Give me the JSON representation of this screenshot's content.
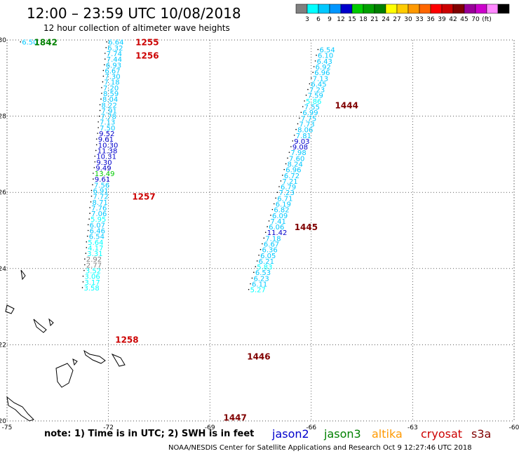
{
  "header": {
    "title": "12:00 – 23:59 UTC 10/08/2018",
    "subtitle": "12 hour collection of altimeter wave heights"
  },
  "colorbar": {
    "swatches": [
      "#808080",
      "#00ffff",
      "#00c8ff",
      "#0096ff",
      "#0000cc",
      "#00cc00",
      "#00a000",
      "#008000",
      "#ffff00",
      "#ffcc00",
      "#ff9900",
      "#ff6600",
      "#ff0000",
      "#cc0000",
      "#800000",
      "#990099",
      "#cc00cc",
      "#ff88ff",
      "#000000"
    ],
    "labels": [
      "3",
      "6",
      "9",
      "12",
      "15",
      "18",
      "21",
      "24",
      "27",
      "30",
      "33",
      "36",
      "39",
      "42",
      "45",
      "70",
      "(ft)"
    ]
  },
  "note": "note:  1) Time is in UTC;  2) SWH is in feet",
  "satellites": [
    {
      "name": "jason2",
      "color": "#0000cc"
    },
    {
      "name": "jason3",
      "color": "#008000"
    },
    {
      "name": "altika",
      "color": "#ff9900"
    },
    {
      "name": "cryosat",
      "color": "#cc0000"
    },
    {
      "name": "s3a",
      "color": "#800000"
    }
  ],
  "footer": "NOAA/NESDIS Center for Satellite Applications and Research    Oct  9 12:27:46 UTC 2018",
  "chart_data": {
    "type": "scatter",
    "title": "12:00 – 23:59 UTC 10/08/2018",
    "xlim": [
      -75,
      -60
    ],
    "ylim": [
      20,
      30
    ],
    "x_ticks": [
      "-75",
      "-72",
      "-69",
      "-66",
      "-63",
      "-60"
    ],
    "y_ticks": [
      "20",
      "22",
      "24",
      "26",
      "28",
      "30"
    ],
    "grid": true,
    "tracks": [
      {
        "name": "cryosat",
        "color": "#cc0000",
        "times": [
          {
            "label": "1255",
            "lat": 29.95,
            "lon": -71.2
          },
          {
            "label": "1256",
            "lat": 29.6,
            "lon": -71.2
          },
          {
            "label": "1257",
            "lat": 25.9,
            "lon": -71.3
          },
          {
            "label": "1258",
            "lat": 22.15,
            "lon": -71.8
          }
        ],
        "points": [
          {
            "lat": 29.95,
            "lon": -72.05,
            "swh": "6.64",
            "color": "#00c8ff"
          },
          {
            "lat": 29.8,
            "lon": -72.07,
            "swh": "6.32",
            "color": "#00c8ff"
          },
          {
            "lat": 29.65,
            "lon": -72.1,
            "swh": "7.74",
            "color": "#00c8ff"
          },
          {
            "lat": 29.5,
            "lon": -72.1,
            "swh": "7.44",
            "color": "#00c8ff"
          },
          {
            "lat": 29.35,
            "lon": -72.12,
            "swh": "6.93",
            "color": "#00c8ff"
          },
          {
            "lat": 29.2,
            "lon": -72.15,
            "swh": "6.67",
            "color": "#00c8ff"
          },
          {
            "lat": 29.05,
            "lon": -72.15,
            "swh": "7.30",
            "color": "#00c8ff"
          },
          {
            "lat": 28.9,
            "lon": -72.17,
            "swh": "7.18",
            "color": "#00c8ff"
          },
          {
            "lat": 28.75,
            "lon": -72.2,
            "swh": "7.20",
            "color": "#00c8ff"
          },
          {
            "lat": 28.6,
            "lon": -72.2,
            "swh": "8.59",
            "color": "#00c8ff"
          },
          {
            "lat": 28.45,
            "lon": -72.22,
            "swh": "8.04",
            "color": "#00c8ff"
          },
          {
            "lat": 28.3,
            "lon": -72.25,
            "swh": "8.22",
            "color": "#00c8ff"
          },
          {
            "lat": 28.15,
            "lon": -72.25,
            "swh": "7.91",
            "color": "#00c8ff"
          },
          {
            "lat": 28.0,
            "lon": -72.27,
            "swh": "7.78",
            "color": "#00c8ff"
          },
          {
            "lat": 27.85,
            "lon": -72.3,
            "swh": "7.13",
            "color": "#00c8ff"
          },
          {
            "lat": 27.7,
            "lon": -72.3,
            "swh": "7.50",
            "color": "#00c8ff"
          },
          {
            "lat": 27.55,
            "lon": -72.32,
            "swh": "9.52",
            "color": "#0000cc"
          },
          {
            "lat": 27.4,
            "lon": -72.35,
            "swh": "9.61",
            "color": "#0000cc"
          },
          {
            "lat": 27.25,
            "lon": -72.35,
            "swh": "10.30",
            "color": "#0000cc"
          },
          {
            "lat": 27.1,
            "lon": -72.37,
            "swh": "11.38",
            "color": "#0000cc"
          },
          {
            "lat": 26.95,
            "lon": -72.4,
            "swh": "10.31",
            "color": "#0000cc"
          },
          {
            "lat": 26.8,
            "lon": -72.4,
            "swh": "9.30",
            "color": "#0000cc"
          },
          {
            "lat": 26.65,
            "lon": -72.42,
            "swh": "9.49",
            "color": "#0000cc"
          },
          {
            "lat": 26.5,
            "lon": -72.45,
            "swh": "13.49",
            "color": "#00cc00"
          },
          {
            "lat": 26.35,
            "lon": -72.45,
            "swh": "9.61",
            "color": "#0000cc"
          },
          {
            "lat": 26.2,
            "lon": -72.47,
            "swh": "7.56",
            "color": "#00c8ff"
          },
          {
            "lat": 26.05,
            "lon": -72.5,
            "swh": "6.91",
            "color": "#00c8ff"
          },
          {
            "lat": 25.9,
            "lon": -72.5,
            "swh": "7.72",
            "color": "#00c8ff"
          },
          {
            "lat": 25.75,
            "lon": -72.52,
            "swh": "8.71",
            "color": "#00c8ff"
          },
          {
            "lat": 25.6,
            "lon": -72.55,
            "swh": "7.76",
            "color": "#00c8ff"
          },
          {
            "lat": 25.45,
            "lon": -72.55,
            "swh": "7.06",
            "color": "#00c8ff"
          },
          {
            "lat": 25.3,
            "lon": -72.57,
            "swh": "5.95",
            "color": "#00ffff"
          },
          {
            "lat": 25.15,
            "lon": -72.6,
            "swh": "6.07",
            "color": "#00c8ff"
          },
          {
            "lat": 25.0,
            "lon": -72.6,
            "swh": "6.46",
            "color": "#00c8ff"
          },
          {
            "lat": 24.85,
            "lon": -72.62,
            "swh": "6.54",
            "color": "#00c8ff"
          },
          {
            "lat": 24.7,
            "lon": -72.65,
            "swh": "5.64",
            "color": "#00ffff"
          },
          {
            "lat": 24.55,
            "lon": -72.65,
            "swh": "4.17",
            "color": "#00ffff"
          },
          {
            "lat": 24.4,
            "lon": -72.67,
            "swh": "3.31",
            "color": "#00ffff"
          },
          {
            "lat": 24.25,
            "lon": -72.7,
            "swh": "2.92",
            "color": "#808080"
          },
          {
            "lat": 24.1,
            "lon": -72.7,
            "swh": "2.77",
            "color": "#808080"
          },
          {
            "lat": 23.95,
            "lon": -72.72,
            "swh": "3.52",
            "color": "#00ffff"
          },
          {
            "lat": 23.8,
            "lon": -72.75,
            "swh": "3.06",
            "color": "#00ffff"
          },
          {
            "lat": 23.65,
            "lon": -72.75,
            "swh": "3.17",
            "color": "#00ffff"
          },
          {
            "lat": 23.5,
            "lon": -72.77,
            "swh": "3.58",
            "color": "#00ffff"
          }
        ]
      },
      {
        "name": "s3a",
        "color": "#800000",
        "times": [
          {
            "label": "1444",
            "lat": 28.3,
            "lon": -65.3
          },
          {
            "label": "1445",
            "lat": 25.1,
            "lon": -66.5
          },
          {
            "label": "1446",
            "lat": 21.7,
            "lon": -67.9
          },
          {
            "lat": 20.1,
            "lon": -68.6,
            "label": "1447"
          }
        ],
        "points": [
          {
            "lat": 29.75,
            "lon": -65.8,
            "swh": "6.54",
            "color": "#00c8ff"
          },
          {
            "lat": 29.6,
            "lon": -65.85,
            "swh": "6.10",
            "color": "#00c8ff"
          },
          {
            "lat": 29.45,
            "lon": -65.88,
            "swh": "6.43",
            "color": "#00c8ff"
          },
          {
            "lat": 29.3,
            "lon": -65.92,
            "swh": "6.92",
            "color": "#00c8ff"
          },
          {
            "lat": 29.15,
            "lon": -65.95,
            "swh": "6.96",
            "color": "#00c8ff"
          },
          {
            "lat": 29.0,
            "lon": -66.0,
            "swh": "7.13",
            "color": "#00c8ff"
          },
          {
            "lat": 28.85,
            "lon": -66.05,
            "swh": "6.45",
            "color": "#00c8ff"
          },
          {
            "lat": 28.7,
            "lon": -66.1,
            "swh": "7.23",
            "color": "#00c8ff"
          },
          {
            "lat": 28.55,
            "lon": -66.15,
            "swh": "7.59",
            "color": "#00c8ff"
          },
          {
            "lat": 28.4,
            "lon": -66.2,
            "swh": "5.86",
            "color": "#00ffff"
          },
          {
            "lat": 28.25,
            "lon": -66.25,
            "swh": "7.55",
            "color": "#00c8ff"
          },
          {
            "lat": 28.1,
            "lon": -66.3,
            "swh": "6.99",
            "color": "#00c8ff"
          },
          {
            "lat": 27.95,
            "lon": -66.35,
            "swh": "7.75",
            "color": "#00c8ff"
          },
          {
            "lat": 27.8,
            "lon": -66.4,
            "swh": "7.73",
            "color": "#00c8ff"
          },
          {
            "lat": 27.65,
            "lon": -66.45,
            "swh": "8.06",
            "color": "#00c8ff"
          },
          {
            "lat": 27.5,
            "lon": -66.5,
            "swh": "7.81",
            "color": "#00c8ff"
          },
          {
            "lat": 27.35,
            "lon": -66.55,
            "swh": "9.03",
            "color": "#0000cc"
          },
          {
            "lat": 27.2,
            "lon": -66.6,
            "swh": "9.08",
            "color": "#0000cc"
          },
          {
            "lat": 27.05,
            "lon": -66.65,
            "swh": "7.98",
            "color": "#00c8ff"
          },
          {
            "lat": 26.9,
            "lon": -66.7,
            "swh": "7.60",
            "color": "#00c8ff"
          },
          {
            "lat": 26.75,
            "lon": -66.75,
            "swh": "8.24",
            "color": "#00c8ff"
          },
          {
            "lat": 26.6,
            "lon": -66.8,
            "swh": "6.96",
            "color": "#00c8ff"
          },
          {
            "lat": 26.45,
            "lon": -66.85,
            "swh": "6.72",
            "color": "#00c8ff"
          },
          {
            "lat": 26.3,
            "lon": -66.9,
            "swh": "7.21",
            "color": "#00c8ff"
          },
          {
            "lat": 26.15,
            "lon": -66.95,
            "swh": "6.79",
            "color": "#00c8ff"
          },
          {
            "lat": 26.0,
            "lon": -67.0,
            "swh": "7.23",
            "color": "#00c8ff"
          },
          {
            "lat": 25.85,
            "lon": -67.05,
            "swh": "6.71",
            "color": "#00c8ff"
          },
          {
            "lat": 25.7,
            "lon": -67.1,
            "swh": "6.19",
            "color": "#00c8ff"
          },
          {
            "lat": 25.55,
            "lon": -67.15,
            "swh": "6.82",
            "color": "#00c8ff"
          },
          {
            "lat": 25.4,
            "lon": -67.2,
            "swh": "6.09",
            "color": "#00c8ff"
          },
          {
            "lat": 25.25,
            "lon": -67.25,
            "swh": "7.41",
            "color": "#00c8ff"
          },
          {
            "lat": 25.1,
            "lon": -67.3,
            "swh": "6.06",
            "color": "#00c8ff"
          },
          {
            "lat": 24.95,
            "lon": -67.35,
            "swh": "11.42",
            "color": "#0000cc"
          },
          {
            "lat": 24.8,
            "lon": -67.4,
            "swh": "7.18",
            "color": "#00c8ff"
          },
          {
            "lat": 24.65,
            "lon": -67.45,
            "swh": "6.67",
            "color": "#00c8ff"
          },
          {
            "lat": 24.5,
            "lon": -67.5,
            "swh": "6.36",
            "color": "#00c8ff"
          },
          {
            "lat": 24.35,
            "lon": -67.55,
            "swh": "6.05",
            "color": "#00c8ff"
          },
          {
            "lat": 24.2,
            "lon": -67.6,
            "swh": "6.21",
            "color": "#00c8ff"
          },
          {
            "lat": 24.05,
            "lon": -67.65,
            "swh": "5.83",
            "color": "#00ffff"
          },
          {
            "lat": 23.9,
            "lon": -67.7,
            "swh": "6.53",
            "color": "#00c8ff"
          },
          {
            "lat": 23.75,
            "lon": -67.75,
            "swh": "6.23",
            "color": "#00c8ff"
          },
          {
            "lat": 23.6,
            "lon": -67.8,
            "swh": "6.11",
            "color": "#00c8ff"
          },
          {
            "lat": 23.45,
            "lon": -67.85,
            "swh": "5.27",
            "color": "#00ffff"
          }
        ]
      },
      {
        "name": "jason3",
        "color": "#008000",
        "times": [
          {
            "label": "1842",
            "lat": 29.95,
            "lon": -74.2
          }
        ],
        "points": [
          {
            "lat": 29.95,
            "lon": -74.6,
            "swh": "6.50",
            "color": "#00c8ff"
          }
        ]
      }
    ]
  }
}
